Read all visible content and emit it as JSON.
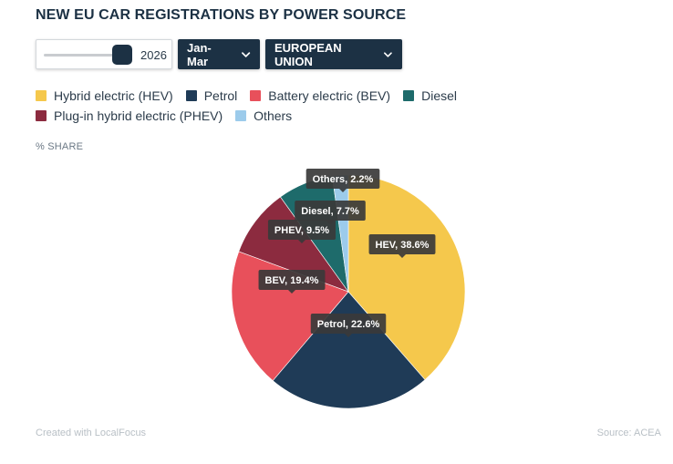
{
  "title": "NEW EU CAR REGISTRATIONS BY POWER SOURCE",
  "controls": {
    "year": "2026",
    "year_slider_level": 1.0,
    "period": "Jan-Mar",
    "region": "EUROPEAN UNION"
  },
  "unit_label": "% SHARE",
  "footer": {
    "credit": "Created with LocalFocus",
    "source": "Source:  ACEA"
  },
  "chart_data": {
    "type": "pie",
    "title": "NEW EU CAR REGISTRATIONS BY POWER SOURCE",
    "unit": "% SHARE",
    "legend_position": "top",
    "slices": [
      {
        "legend": "Hybrid electric (HEV)",
        "label": "HEV, 38.6%",
        "value": 38.6,
        "color": "#f5c84c"
      },
      {
        "legend": "Petrol",
        "label": "Petrol, 22.6%",
        "value": 22.6,
        "color": "#1f3b57"
      },
      {
        "legend": "Battery electric (BEV)",
        "label": "BEV, 19.4%",
        "value": 19.4,
        "color": "#e8505b"
      },
      {
        "legend": "Plug-in hybrid electric (PHEV)",
        "label": "PHEV, 9.5%",
        "value": 9.5,
        "color": "#8c2b3f"
      },
      {
        "legend": "Diesel",
        "label": "Diesel, 7.7%",
        "value": 7.7,
        "color": "#1e6b6b"
      },
      {
        "legend": "Others",
        "label": "Others, 2.2%",
        "value": 2.2,
        "color": "#9ccbeb"
      }
    ],
    "legend_order": [
      0,
      1,
      2,
      4,
      3,
      5
    ]
  }
}
